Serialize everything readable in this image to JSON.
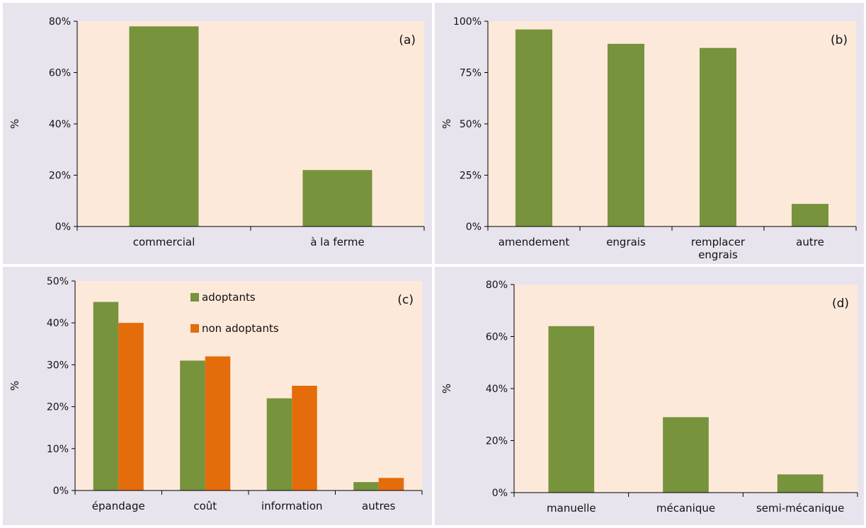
{
  "colors": {
    "green": "#77933c",
    "orange": "#e46c0a",
    "plot_bg": "#fde9da",
    "panel_bg": "#e8e4ee"
  },
  "chart_data": [
    {
      "id": "a",
      "type": "bar",
      "panel_label": "(a)",
      "ylabel": "%",
      "categories": [
        "commercial",
        "à la ferme"
      ],
      "series": [
        {
          "values": [
            78,
            22
          ]
        }
      ],
      "ylim": [
        0,
        80
      ],
      "yticks": [
        0,
        20,
        40,
        60,
        80
      ],
      "ytick_labels": [
        "0%",
        "20%",
        "40%",
        "60%",
        "80%"
      ],
      "grid": false
    },
    {
      "id": "b",
      "type": "bar",
      "panel_label": "(b)",
      "ylabel": "%",
      "categories": [
        "amendement",
        "engrais",
        "remplacer engrais",
        "autre"
      ],
      "category_lines": [
        [
          "amendement"
        ],
        [
          "engrais"
        ],
        [
          "remplacer",
          "engrais"
        ],
        [
          "autre"
        ]
      ],
      "series": [
        {
          "values": [
            96,
            89,
            87,
            11
          ]
        }
      ],
      "ylim": [
        0,
        100
      ],
      "yticks": [
        0,
        25,
        50,
        75,
        100
      ],
      "ytick_labels": [
        "0%",
        "25%",
        "50%",
        "75%",
        "100%"
      ],
      "grid": false
    },
    {
      "id": "c",
      "type": "bar",
      "panel_label": "(c)",
      "ylabel": "%",
      "categories": [
        "épandage",
        "coût",
        "information",
        "autres"
      ],
      "series": [
        {
          "name": "adoptants",
          "values": [
            45,
            31,
            22,
            2
          ]
        },
        {
          "name": "non adoptants",
          "values": [
            40,
            32,
            25,
            3
          ]
        }
      ],
      "ylim": [
        0,
        50
      ],
      "yticks": [
        0,
        10,
        20,
        30,
        40,
        50
      ],
      "ytick_labels": [
        "0%",
        "10%",
        "20%",
        "30%",
        "40%",
        "50%"
      ],
      "legend_position": "top-center",
      "grid": false
    },
    {
      "id": "d",
      "type": "bar",
      "panel_label": "(d)",
      "ylabel": "%",
      "categories": [
        "manuelle",
        "mécanique",
        "semi-mécanique"
      ],
      "series": [
        {
          "values": [
            64,
            29,
            7
          ]
        }
      ],
      "ylim": [
        0,
        80
      ],
      "yticks": [
        0,
        20,
        40,
        60,
        80
      ],
      "ytick_labels": [
        "0%",
        "20%",
        "40%",
        "60%",
        "80%"
      ],
      "grid": false
    }
  ]
}
